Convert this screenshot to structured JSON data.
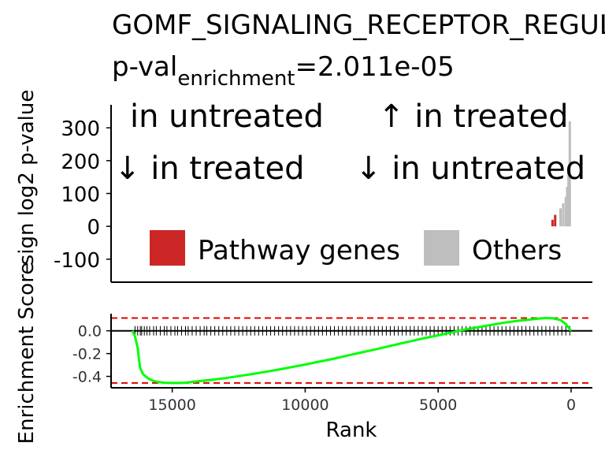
{
  "chart_data": [
    {
      "type": "bar",
      "title": "GOMF_SIGNALING_RECEPTOR_REGULATOR_ACTIVITY",
      "subtitle_prefix": "p-val",
      "subtitle_subscript": "enrichment",
      "subtitle_value": "=2.011e-05",
      "ylabel": "sign log2 p-value",
      "ylim": [
        -170,
        370
      ],
      "yticks": [
        300,
        200,
        100,
        0,
        -100
      ],
      "quadrant_labels": {
        "top_left": "in untreated",
        "top_right": "↑ in treated",
        "bottom_left": "↓ in treated",
        "bottom_right": "↓ in untreated"
      },
      "legend": [
        {
          "label": "Pathway genes",
          "color": "#cc2626"
        },
        {
          "label": "Others",
          "color": "#bebebe"
        }
      ],
      "legend_position": "inside-bottom",
      "x_reversed": true,
      "xlim": [
        17300,
        -800
      ],
      "bars": [
        {
          "rank": 50,
          "value": 320,
          "group": "Others"
        },
        {
          "rank": 100,
          "value": 180,
          "group": "Others"
        },
        {
          "rank": 150,
          "value": 120,
          "group": "Others"
        },
        {
          "rank": 200,
          "value": 90,
          "group": "Others"
        },
        {
          "rank": 300,
          "value": 70,
          "group": "Others"
        },
        {
          "rank": 400,
          "value": 55,
          "group": "Others"
        },
        {
          "rank": 600,
          "value": 35,
          "group": "Pathway genes"
        },
        {
          "rank": 700,
          "value": 20,
          "group": "Pathway genes"
        }
      ]
    },
    {
      "type": "line",
      "ylabel": "Enrichment Score",
      "xlabel": "Rank",
      "x_reversed": true,
      "xlim": [
        17300,
        -800
      ],
      "ylim": [
        -0.5,
        0.15
      ],
      "xticks": [
        15000,
        10000,
        5000,
        0
      ],
      "yticks": [
        0.0,
        -0.2,
        -0.4
      ],
      "series": [
        {
          "color": "#00ff00",
          "x": [
            16500,
            16400,
            16300,
            16250,
            16200,
            16100,
            16000,
            15900,
            15700,
            15500,
            15300,
            15100,
            14900,
            14700,
            14500,
            14300,
            14000,
            13500,
            13000,
            12500,
            12000,
            11500,
            11000,
            10500,
            10000,
            9500,
            9000,
            8500,
            8000,
            7500,
            7000,
            6500,
            6000,
            5500,
            5000,
            4500,
            4000,
            3500,
            3000,
            2500,
            2000,
            1500,
            1200,
            1000,
            700,
            400,
            200,
            100,
            0
          ],
          "y": [
            0.0,
            -0.05,
            -0.15,
            -0.25,
            -0.33,
            -0.38,
            -0.4,
            -0.42,
            -0.44,
            -0.45,
            -0.455,
            -0.457,
            -0.458,
            -0.458,
            -0.455,
            -0.45,
            -0.442,
            -0.43,
            -0.415,
            -0.398,
            -0.38,
            -0.36,
            -0.34,
            -0.318,
            -0.296,
            -0.272,
            -0.248,
            -0.222,
            -0.196,
            -0.17,
            -0.143,
            -0.116,
            -0.09,
            -0.064,
            -0.04,
            -0.015,
            0.01,
            0.032,
            0.052,
            0.072,
            0.088,
            0.1,
            0.108,
            0.112,
            0.11,
            0.095,
            0.06,
            0.03,
            0.0
          ]
        }
      ],
      "hlines": [
        {
          "y": 0.0,
          "color": "#000000",
          "style": "solid"
        },
        {
          "y": 0.112,
          "color": "#e00000",
          "style": "dashed"
        },
        {
          "y": -0.458,
          "color": "#e00000",
          "style": "dashed"
        }
      ],
      "rug_ranks": [
        16400,
        16300,
        16200,
        16150,
        16050,
        15950,
        15850,
        15700,
        15600,
        15450,
        15300,
        15200,
        15050,
        14900,
        14800,
        14650,
        14500,
        14400,
        14250,
        14100,
        13950,
        13800,
        13700,
        13550,
        13400,
        13250,
        13100,
        12950,
        12800,
        12650,
        12500,
        12350,
        12200,
        12050,
        11900,
        11750,
        11600,
        11450,
        11300,
        11150,
        11000,
        10850,
        10700,
        10550,
        10400,
        10250,
        10100,
        9950,
        9800,
        9650,
        9500,
        9350,
        9200,
        9050,
        8900,
        8750,
        8600,
        8450,
        8300,
        8150,
        8000,
        7850,
        7700,
        7550,
        7400,
        7250,
        7100,
        6950,
        6800,
        6650,
        6500,
        6350,
        6200,
        6050,
        5900,
        5750,
        5600,
        5450,
        5300,
        5150,
        5000,
        4850,
        4700,
        4550,
        4400,
        4250,
        4100,
        3950,
        3800,
        3650,
        3500,
        3350,
        3200,
        3050,
        2900,
        2750,
        2600,
        2450,
        2300,
        2150,
        2000,
        1850,
        1700,
        1550,
        1400,
        1250,
        1100,
        950,
        800,
        650,
        500,
        350,
        200,
        50
      ]
    }
  ]
}
